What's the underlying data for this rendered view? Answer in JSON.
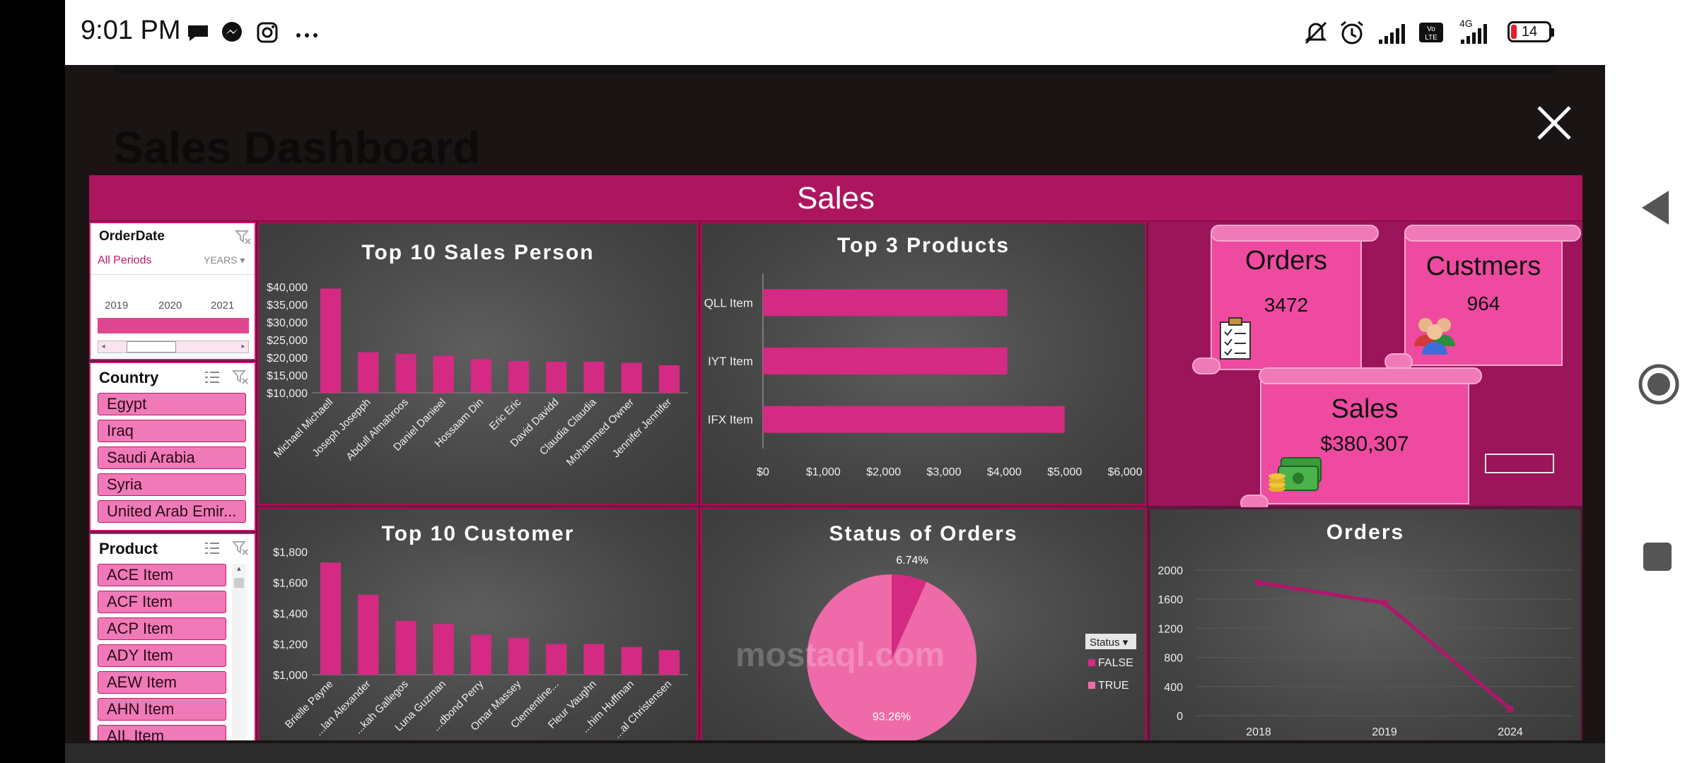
{
  "status_bar": {
    "time": "9:01 PM",
    "battery": "14",
    "network": "4G",
    "icons": [
      "chat-icon",
      "messenger-icon",
      "instagram-icon",
      "more-icon",
      "mute-icon",
      "alarm-icon",
      "signal-icon",
      "volte-icon",
      "signal-4g-icon",
      "battery-icon"
    ]
  },
  "modal": {
    "background_title": "Sales Dashboard",
    "close_icon": "close-icon"
  },
  "dashboard": {
    "header_title": "Sales",
    "accent_color": "#ad155f",
    "bar_color": "#d42a83",
    "slicers": {
      "order_date": {
        "title": "OrderDate",
        "selection": "All Periods",
        "level": "YEARS",
        "years": [
          "2019",
          "2020",
          "2021"
        ]
      },
      "country": {
        "title": "Country",
        "items": [
          "Egypt",
          "Iraq",
          "Saudi Arabia",
          "Syria",
          "United Arab Emir..."
        ]
      },
      "product": {
        "title": "Product",
        "items": [
          "ACE Item",
          "ACF Item",
          "ACP Item",
          "ADY Item",
          "AEW Item",
          "AHN Item",
          "AIL Item"
        ]
      }
    },
    "kpis": {
      "orders": {
        "label": "Orders",
        "value": "3472"
      },
      "customers": {
        "label": "Custmers",
        "value": "964"
      },
      "sales": {
        "label": "Sales",
        "value": "$380,307"
      }
    }
  },
  "chart_data": [
    {
      "type": "bar",
      "title": "Top 10 Sales Person",
      "categories": [
        "Michael Michaell",
        "Joseph Josepph",
        "Abdull Almahroos",
        "Daniel Danieel",
        "Hossaam Din",
        "Eric Eric",
        "David Davidd",
        "Claudia Claudia",
        "Mohammed Owner",
        "Jennifer Jennifer"
      ],
      "values": [
        39500,
        21500,
        21000,
        20500,
        19500,
        19000,
        18800,
        18800,
        18500,
        17800
      ],
      "ylim": [
        10000,
        40000
      ],
      "yticks": [
        "$10,000",
        "$15,000",
        "$20,000",
        "$25,000",
        "$30,000",
        "$35,000",
        "$40,000"
      ]
    },
    {
      "type": "bar",
      "orientation": "horizontal",
      "title": "Top 3 Products",
      "categories": [
        "QLL Item",
        "IYT Item",
        "IFX Item"
      ],
      "values": [
        4050,
        4050,
        5000
      ],
      "xlim": [
        0,
        6000
      ],
      "xticks": [
        "$0",
        "$1,000",
        "$2,000",
        "$3,000",
        "$4,000",
        "$5,000",
        "$6,000"
      ]
    },
    {
      "type": "bar",
      "title": "Top 10 Customer",
      "categories": [
        "Brielle Payne",
        "...lan Alexander",
        "...kah Gallegos",
        "Luna Guzman",
        "...dbond Perry",
        "Omar Massey",
        "Clementine...",
        "Fleur Vaughn",
        "...him Huffman",
        "...al Christensen"
      ],
      "values": [
        1730,
        1520,
        1350,
        1330,
        1260,
        1240,
        1200,
        1200,
        1180,
        1160
      ],
      "ylim": [
        1000,
        1800
      ],
      "yticks": [
        "$1,000",
        "$1,200",
        "$1,400",
        "$1,600",
        "$1,800"
      ]
    },
    {
      "type": "pie",
      "title": "Status of Orders",
      "legend_title": "Status",
      "series": [
        {
          "name": "FALSE",
          "value": 6.74,
          "label": "6.74%"
        },
        {
          "name": "TRUE",
          "value": 93.26,
          "label": "93.26%"
        }
      ]
    },
    {
      "type": "line",
      "title": "Orders",
      "categories": [
        "2018",
        "2019",
        "2024"
      ],
      "values": [
        1830,
        1550,
        90
      ],
      "ylim": [
        0,
        2000
      ],
      "yticks": [
        "0",
        "400",
        "800",
        "1200",
        "1600",
        "2000"
      ]
    }
  ],
  "watermark": "mostaql.com"
}
